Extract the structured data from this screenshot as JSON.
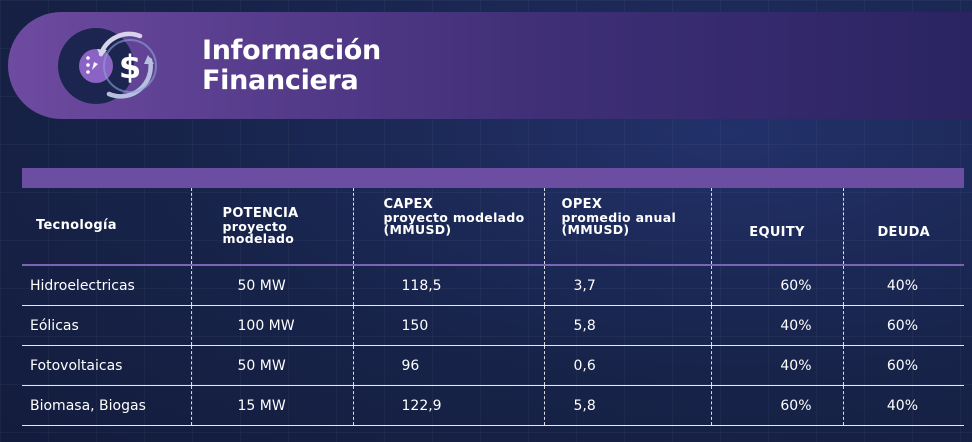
{
  "header": {
    "title_line1": "Información",
    "title_line2": "Financiera",
    "icon": "dollar-cycle-icon"
  },
  "colors": {
    "accent": "#6b4ea2",
    "background": "#172349",
    "banner_start": "#6e4ba0"
  },
  "table": {
    "columns": [
      {
        "title": "Tecnología",
        "subtitle": ""
      },
      {
        "title": "POTENCIA",
        "subtitle": "proyecto modelado"
      },
      {
        "title": "CAPEX",
        "subtitle": "proyecto modelado (MMUSD)"
      },
      {
        "title": "OPEX",
        "subtitle": "promedio anual (MMUSD)"
      },
      {
        "title": "EQUITY",
        "subtitle": ""
      },
      {
        "title": "DEUDA",
        "subtitle": ""
      }
    ],
    "rows": [
      {
        "tecnologia": "Hidroelectricas",
        "potencia": "50 MW",
        "capex": "118,5",
        "opex": "3,7",
        "equity": "60%",
        "deuda": "40%"
      },
      {
        "tecnologia": "Eólicas",
        "potencia": "100 MW",
        "capex": "150",
        "opex": "5,8",
        "equity": "40%",
        "deuda": "60%"
      },
      {
        "tecnologia": "Fotovoltaicas",
        "potencia": "50 MW",
        "capex": "96",
        "opex": "0,6",
        "equity": "40%",
        "deuda": "60%"
      },
      {
        "tecnologia": "Biomasa, Biogas",
        "potencia": "15 MW",
        "capex": "122,9",
        "opex": "5,8",
        "equity": "60%",
        "deuda": "40%"
      }
    ]
  }
}
